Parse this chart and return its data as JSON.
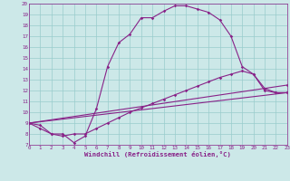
{
  "xlabel": "Windchill (Refroidissement éolien,°C)",
  "bg_color": "#cce8e8",
  "line_color": "#882288",
  "xmin": 0,
  "xmax": 23,
  "ymin": 7,
  "ymax": 20,
  "curve1_x": [
    0,
    1,
    2,
    3,
    4,
    5,
    6,
    7,
    8,
    9,
    10,
    11,
    12,
    13,
    14,
    15,
    16,
    17,
    18,
    19,
    20,
    21,
    22,
    23
  ],
  "curve1_y": [
    9.0,
    8.8,
    8.0,
    8.0,
    7.2,
    7.8,
    10.3,
    14.2,
    16.4,
    17.2,
    18.7,
    18.7,
    19.3,
    19.8,
    19.8,
    19.5,
    19.2,
    18.5,
    17.0,
    14.2,
    13.5,
    12.0,
    11.8,
    11.8
  ],
  "curve2_x": [
    0,
    1,
    2,
    3,
    4,
    5,
    6,
    7,
    8,
    9,
    10,
    11,
    12,
    13,
    14,
    15,
    16,
    17,
    18,
    19,
    20,
    21,
    22,
    23
  ],
  "curve2_y": [
    9.0,
    8.5,
    8.0,
    7.8,
    8.0,
    8.0,
    8.5,
    9.0,
    9.5,
    10.0,
    10.4,
    10.8,
    11.2,
    11.6,
    12.0,
    12.4,
    12.8,
    13.2,
    13.5,
    13.8,
    13.5,
    12.2,
    11.8,
    11.8
  ],
  "curve3_x": [
    0,
    23
  ],
  "curve3_y": [
    9.0,
    11.8
  ],
  "curve4_x": [
    0,
    23
  ],
  "curve4_y": [
    9.0,
    12.5
  ],
  "grid_color": "#99cccc",
  "font_color": "#882288",
  "tick_font_size": 4.2,
  "label_font_size": 5.2
}
